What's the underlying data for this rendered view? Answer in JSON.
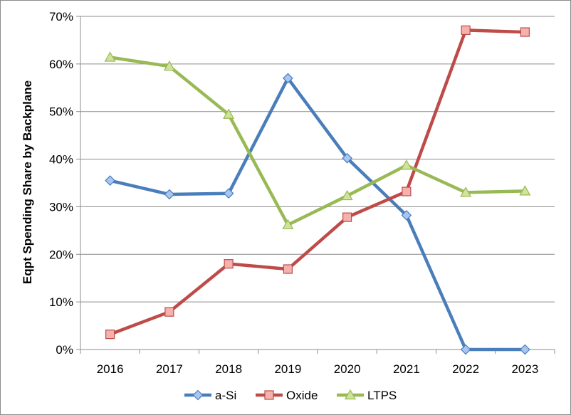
{
  "chart_data": {
    "type": "line",
    "title": "",
    "xlabel": "",
    "ylabel": "Eqpt Spending Share by Backplane",
    "categories": [
      "2016",
      "2017",
      "2018",
      "2019",
      "2020",
      "2021",
      "2022",
      "2023"
    ],
    "ylim": [
      0,
      70
    ],
    "yticks": [
      0,
      10,
      20,
      30,
      40,
      50,
      60,
      70
    ],
    "ytick_labels": [
      "0%",
      "10%",
      "20%",
      "30%",
      "40%",
      "50%",
      "60%",
      "70%"
    ],
    "grid": "horizontal",
    "legend_position": "bottom",
    "series": [
      {
        "name": "a-Si",
        "color": "#4a7ebb",
        "marker": "diamond",
        "marker_fill": "#a9c6f0",
        "values": [
          35.5,
          32.6,
          32.8,
          57.0,
          40.2,
          28.2,
          0.0,
          0.0
        ]
      },
      {
        "name": "Oxide",
        "color": "#be4b48",
        "marker": "square",
        "marker_fill": "#f4b1ae",
        "values": [
          3.2,
          7.9,
          18.0,
          16.9,
          27.8,
          33.2,
          67.1,
          66.7
        ]
      },
      {
        "name": "LTPS",
        "color": "#98b954",
        "marker": "triangle",
        "marker_fill": "#cfe39b",
        "values": [
          61.4,
          59.5,
          49.4,
          26.2,
          32.3,
          38.7,
          33.0,
          33.3
        ]
      }
    ]
  }
}
